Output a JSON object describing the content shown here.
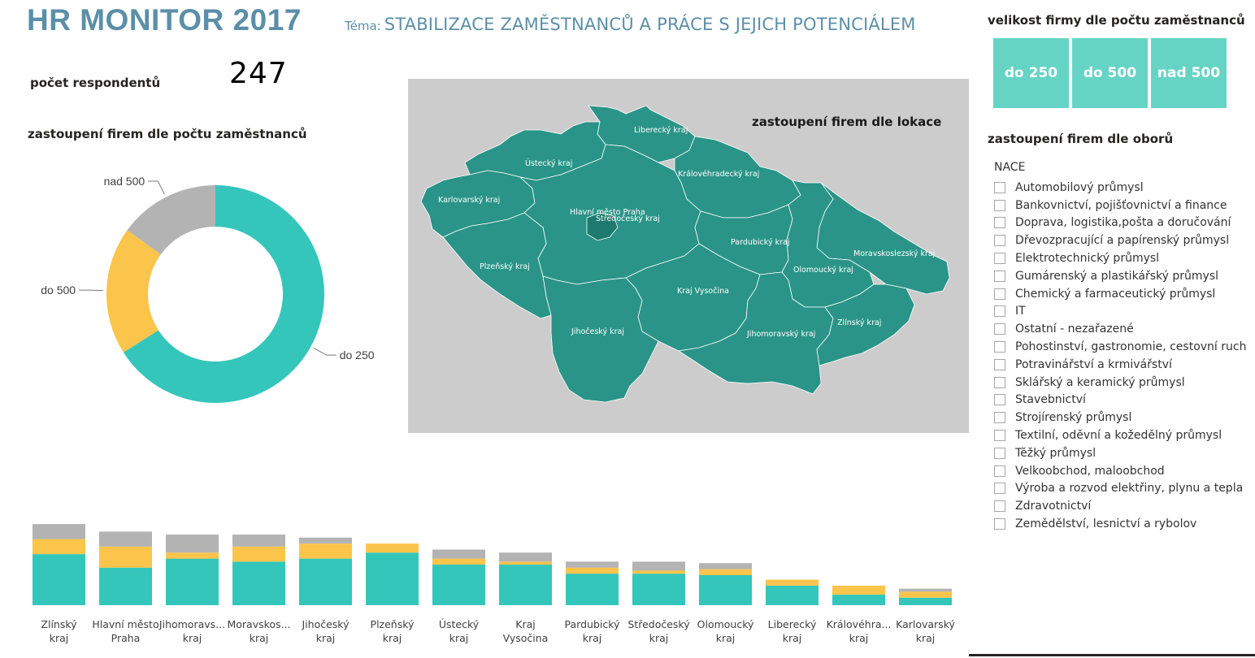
{
  "header": {
    "title": "HR MONITOR 2017",
    "theme_prefix": "Téma:",
    "theme": "STABILIZACE ZAMĚSTNANCŮ A PRÁCE S JEJICH POTENCIÁLEM"
  },
  "respondents": {
    "label": "počet respondentů",
    "value": "247"
  },
  "donut": {
    "title": "zastoupení firem dle počtu zaměstnanců",
    "colors": {
      "do 250": "#34c6bb",
      "do 500": "#fbc44a",
      "nad 500": "#b3b3b3"
    }
  },
  "map": {
    "title": "zastoupení firem dle lokace",
    "regions": [
      "Liberecký kraj",
      "Ústecký kraj",
      "Královéhradecký kraj",
      "Karlovarský kraj",
      "Hlavní město Praha",
      "Středočeský kraj",
      "Pardubický kraj",
      "Moravskoslezský kraj",
      "Plzeňský kraj",
      "Olomoucký kraj",
      "Kraj Vysočina",
      "Jihočeský kraj",
      "Jihomoravský kraj",
      "Zlínský kraj"
    ],
    "colors": {
      "region": "#2a9488",
      "prague": "#1e7a6f",
      "background": "#cccccc"
    }
  },
  "size_filter": {
    "title": "velikost firmy dle počtu zaměstnanců",
    "buttons": [
      "do 250",
      "do 500",
      "nad 500"
    ],
    "color": "#66d4c5"
  },
  "sectors": {
    "title": "zastoupení firem dle oborů",
    "header": "NACE",
    "items": [
      "Automobilový průmysl",
      "Bankovnictví, pojišťovnictví a finance",
      "Doprava, logistika,pošta a doručování",
      "Dřevozpracující a papírenský průmysl",
      "Elektrotechnický průmysl",
      "Gumárenský a plastikářský průmysl",
      "Chemický a farmaceutický průmysl",
      "IT",
      "Ostatní - nezařazené",
      "Pohostinství, gastronomie, cestovní ruch",
      "Potravinářství a krmivářství",
      "Sklářský a keramický průmysl",
      "Stavebnictví",
      "Strojírenský průmysl",
      "Textilní, oděvní a kožedělný průmysl",
      "Těžký průmysl",
      "Velkoobchod, maloobchod",
      "Výroba a rozvod elektřiny, plynu a tepla",
      "Zdravotnictví",
      "Zemědělství, lesnictví a rybolov"
    ]
  },
  "chart_data": [
    {
      "type": "pie",
      "donut": true,
      "title": "zastoupení firem dle počtu zaměstnanců",
      "slices": [
        {
          "label": "do 250",
          "value": 0.66,
          "color": "#34c6bb"
        },
        {
          "label": "do 500",
          "value": 0.19,
          "color": "#fbc44a"
        },
        {
          "label": "nad 500",
          "value": 0.15,
          "color": "#b3b3b3"
        }
      ]
    },
    {
      "type": "bar",
      "stacked": true,
      "categories": [
        "Zlínský kraj",
        "Hlavní město Praha",
        "Jihomoravs... kraj",
        "Moravskos... kraj",
        "Jihočeský kraj",
        "Plzeňský kraj",
        "Ústecký kraj",
        "Kraj Vysočina",
        "Pardubický kraj",
        "Středočeský kraj",
        "Olomoucký kraj",
        "Liberecký kraj",
        "Královéhra... kraj",
        "Karlovarský kraj"
      ],
      "series": [
        {
          "name": "do 250",
          "color": "#34c6bb",
          "values": [
            17,
            12.5,
            15.5,
            14.5,
            15.5,
            17.5,
            13.5,
            13.5,
            10.5,
            10.5,
            10,
            6.5,
            3.5,
            2.5
          ]
        },
        {
          "name": "do 500",
          "color": "#fbc44a",
          "values": [
            5,
            7,
            2,
            5,
            5,
            3,
            2,
            1,
            2,
            1,
            2,
            2,
            3,
            2
          ]
        },
        {
          "name": "nad 500",
          "color": "#b3b3b3",
          "values": [
            5,
            5,
            6,
            4,
            2,
            0,
            3,
            3,
            2,
            3,
            2,
            0,
            0,
            1
          ]
        }
      ]
    }
  ]
}
